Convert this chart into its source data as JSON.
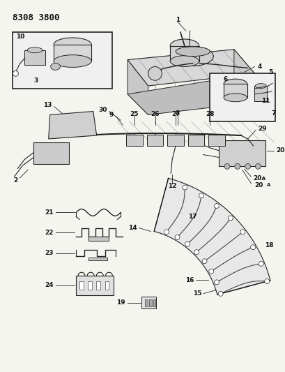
{
  "title": "8308 3800",
  "bg_color": "#f5f5f0",
  "title_fontsize": 9,
  "title_fontweight": "bold",
  "fig_width": 4.1,
  "fig_height": 5.33,
  "dpi": 100,
  "label_fontsize": 6.5,
  "line_color": "#222222",
  "fill_light": "#e0e0e0",
  "fill_mid": "#c8c8c8",
  "fill_dark": "#b0b0b0"
}
